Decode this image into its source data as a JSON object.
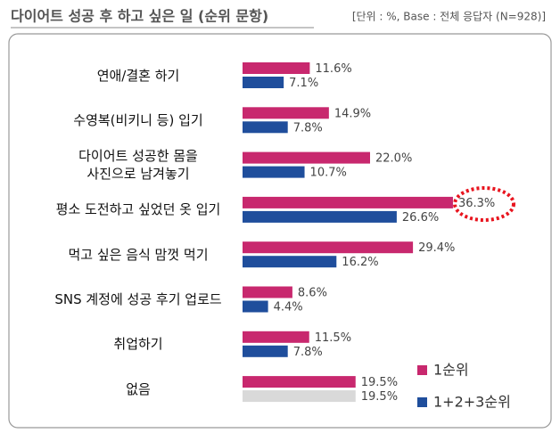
{
  "chart_data": {
    "type": "bar",
    "orientation": "horizontal",
    "title": "다이어트 성공 후 하고 싶은 일 (순위 문항)",
    "subtitle": "[단위 : %, Base : 전체 응답자 (N=928)]",
    "categories": [
      "연애/결혼 하기",
      "수영복(비키니 등) 입기",
      "다이어트 성공한 몸을\n사진으로 남겨놓기",
      "평소 도전하고 싶었던 옷 입기",
      "먹고 싶은 음식 맘껏 먹기",
      "SNS 계정에 성공 후기 업로드",
      "취업하기",
      "없음"
    ],
    "series": [
      {
        "name": "1순위",
        "color": "#c8286e",
        "values": [
          11.6,
          14.9,
          22.0,
          36.3,
          29.4,
          8.6,
          11.5,
          19.5
        ],
        "value_labels": [
          "11.6%",
          "14.9%",
          "22.0%",
          "36.3%",
          "29.4%",
          "8.6%",
          "11.5%",
          "19.5%"
        ]
      },
      {
        "name": "1+2+3순위",
        "color": "#1f4e9c",
        "colors": [
          "#1f4e9c",
          "#1f4e9c",
          "#1f4e9c",
          "#1f4e9c",
          "#1f4e9c",
          "#1f4e9c",
          "#1f4e9c",
          "#d9d9d9"
        ],
        "values": [
          7.1,
          7.8,
          10.7,
          26.6,
          16.2,
          4.4,
          7.8,
          19.5
        ],
        "value_labels": [
          "7.1%",
          "7.8%",
          "10.7%",
          "26.6%",
          "16.2%",
          "4.4%",
          "7.8%",
          "19.5%"
        ]
      }
    ]
  }
}
